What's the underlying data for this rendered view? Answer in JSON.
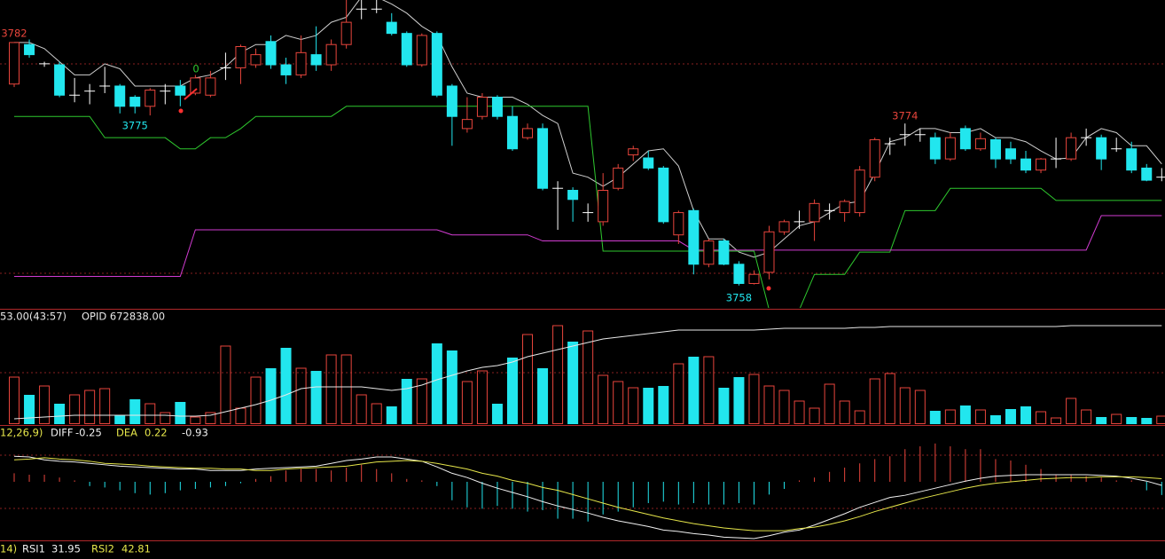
{
  "chart_data": [
    {
      "type": "candlestick",
      "ylim": [
        3755.7,
        3786.2
      ],
      "up_color": "#e8453c",
      "down_color": "#22e6ee",
      "doji_color": "#ffffff",
      "signal_text": "0",
      "open": [
        3777.9,
        3781.8,
        3779.9,
        3779.8,
        3776.8,
        3777.2,
        3777.7,
        3777.7,
        3776.6,
        3775.7,
        3777.2,
        3777.7,
        3777.0,
        3776.8,
        3779.5,
        3779.5,
        3779.8,
        3782.1,
        3779.8,
        3778.8,
        3780.8,
        3779.8,
        3781.8,
        3785.3,
        3785.3,
        3784.0,
        3782.9,
        3779.8,
        3782.9,
        3777.7,
        3773.5,
        3774.7,
        3776.6,
        3774.7,
        3772.6,
        3773.5,
        3767.6,
        3767.4,
        3765.2,
        3764.3,
        3767.6,
        3770.9,
        3770.6,
        3769.6,
        3763.0,
        3765.4,
        3760.1,
        3762.4,
        3760.1,
        3758.2,
        3759.3,
        3763.3,
        3764.3,
        3764.3,
        3765.4,
        3765.2,
        3765.2,
        3768.7,
        3772.0,
        3772.9,
        3772.9,
        3772.6,
        3770.5,
        3773.5,
        3771.5,
        3772.4,
        3771.5,
        3770.5,
        3769.4,
        3770.5,
        3770.5,
        3772.6,
        3772.6,
        3771.5,
        3771.5,
        3769.6,
        3768.7
      ],
      "close": [
        3782.0,
        3780.8,
        3779.9,
        3776.8,
        3776.8,
        3777.2,
        3777.7,
        3775.7,
        3775.7,
        3777.3,
        3777.2,
        3776.8,
        3778.5,
        3778.5,
        3779.5,
        3781.6,
        3780.8,
        3779.8,
        3778.8,
        3781.0,
        3779.8,
        3781.8,
        3784.0,
        3785.3,
        3785.3,
        3782.9,
        3779.8,
        3782.7,
        3776.8,
        3774.7,
        3774.4,
        3776.6,
        3774.7,
        3771.5,
        3773.5,
        3767.6,
        3767.6,
        3766.5,
        3765.2,
        3767.4,
        3769.6,
        3771.5,
        3769.6,
        3764.3,
        3765.2,
        3760.1,
        3762.4,
        3760.1,
        3758.2,
        3759.1,
        3763.3,
        3764.3,
        3764.3,
        3766.1,
        3765.4,
        3766.3,
        3769.4,
        3772.4,
        3772.0,
        3772.9,
        3772.9,
        3770.5,
        3772.6,
        3771.5,
        3772.5,
        3770.5,
        3770.5,
        3769.4,
        3770.5,
        3770.5,
        3772.6,
        3772.6,
        3770.5,
        3771.5,
        3769.4,
        3768.4,
        3768.7
      ],
      "high": [
        3782,
        3782.3,
        3780.1,
        3780.1,
        3778.5,
        3777.9,
        3779.6,
        3777.9,
        3776.8,
        3777.5,
        3777.9,
        3778.3,
        3778.8,
        3779.2,
        3781.0,
        3781.8,
        3781.4,
        3782.7,
        3780.5,
        3782.7,
        3783.6,
        3782.3,
        3786.6,
        3786.6,
        3786.4,
        3784.9,
        3783.1,
        3782.9,
        3783.1,
        3777.9,
        3776.6,
        3777.0,
        3776.8,
        3775.7,
        3774.0,
        3774.0,
        3768.3,
        3767.7,
        3766.1,
        3769.1,
        3770.0,
        3771.8,
        3771.3,
        3769.8,
        3765.4,
        3765.6,
        3762.6,
        3762.6,
        3760.4,
        3759.5,
        3763.9,
        3764.5,
        3765.4,
        3766.5,
        3766.1,
        3766.5,
        3769.8,
        3772.6,
        3772.6,
        3774,
        3773.5,
        3773.1,
        3773.1,
        3773.8,
        3773.1,
        3772.6,
        3772.2,
        3771.3,
        3770.6,
        3772.6,
        3773.1,
        3773.5,
        3772.9,
        3772.6,
        3772.2,
        3770.0,
        3769.6
      ],
      "low": [
        3777.6,
        3780.5,
        3779.6,
        3776.6,
        3776.1,
        3775.9,
        3777.0,
        3775.0,
        3775,
        3774.8,
        3775.9,
        3775.7,
        3776.8,
        3776.6,
        3778.3,
        3777.9,
        3779.5,
        3779.4,
        3777.9,
        3778.5,
        3779.2,
        3779.2,
        3781.4,
        3784.3,
        3784.9,
        3782.7,
        3779.6,
        3779.6,
        3776.6,
        3771.8,
        3773.1,
        3774.4,
        3774.4,
        3771.3,
        3772.4,
        3767.4,
        3763.5,
        3764.3,
        3764.3,
        3763.9,
        3767.4,
        3770.3,
        3769.4,
        3764.1,
        3762.1,
        3759.1,
        3759.8,
        3760.0,
        3758,
        3758.1,
        3758.6,
        3763.0,
        3763.6,
        3762.4,
        3764.5,
        3764.3,
        3764.8,
        3768.3,
        3770.9,
        3771.8,
        3772.2,
        3770.0,
        3770.3,
        3771.3,
        3771.3,
        3769.6,
        3770.0,
        3769.1,
        3769.1,
        3769.6,
        3770.3,
        3771.8,
        3769.4,
        3771.2,
        3769.1,
        3768.3,
        3768.3
      ],
      "overlays": [
        {
          "color": "#cfcfcf",
          "values": [
            3782.0,
            3782.0,
            3781.4,
            3780.1,
            3778.8,
            3778.8,
            3779.9,
            3779.4,
            3777.7,
            3777.7,
            3777.7,
            3777.7,
            3778.5,
            3778.8,
            3779.6,
            3781.0,
            3781.8,
            3781.8,
            3782.7,
            3782.3,
            3782.7,
            3784.0,
            3784.5,
            3786.5,
            3786.5,
            3785.8,
            3784.9,
            3783.6,
            3782.7,
            3779.6,
            3777.0,
            3776.6,
            3776.6,
            3776.6,
            3775.9,
            3774.8,
            3774.0,
            3769.1,
            3768.7,
            3767.8,
            3768.7,
            3770.0,
            3771.3,
            3771.5,
            3769.8,
            3765.4,
            3762.6,
            3762.6,
            3761.3,
            3760.8,
            3761.3,
            3762.6,
            3763.9,
            3764.3,
            3765.2,
            3766.1,
            3766.3,
            3769.1,
            3772.2,
            3772.6,
            3773.5,
            3773.5,
            3773.1,
            3773.1,
            3773.5,
            3772.6,
            3772.6,
            3772.2,
            3771.3,
            3770.5,
            3770.6,
            3772.6,
            3773.5,
            3773.1,
            3771.8,
            3771.8,
            3770.0
          ]
        },
        {
          "color": "#2ec82e",
          "values": [
            3774.7,
            3774.7,
            3774.7,
            3774.7,
            3774.7,
            3774.7,
            3772.6,
            3772.6,
            3772.6,
            3772.6,
            3772.6,
            3771.5,
            3771.5,
            3772.6,
            3772.6,
            3773.5,
            3774.7,
            3774.7,
            3774.7,
            3774.7,
            3774.7,
            3774.7,
            3775.7,
            3775.7,
            3775.7,
            3775.7,
            3775.7,
            3775.7,
            3775.7,
            3775.7,
            3775.7,
            3775.7,
            3775.7,
            3775.7,
            3775.7,
            3775.7,
            3775.7,
            3775.7,
            3775.7,
            3761.4,
            3761.4,
            3761.4,
            3761.4,
            3761.4,
            3761.4,
            3761.4,
            3761.4,
            3761.4,
            3761.4,
            3761.4,
            3755.6,
            3752.9,
            3755.6,
            3759.1,
            3759.1,
            3759.1,
            3761.3,
            3761.3,
            3761.3,
            3765.4,
            3765.4,
            3765.4,
            3767.6,
            3767.6,
            3767.6,
            3767.6,
            3767.6,
            3767.6,
            3767.6,
            3766.4,
            3766.4,
            3766.4,
            3766.4,
            3766.4,
            3766.4,
            3766.4,
            3766.4
          ]
        },
        {
          "color": "#d23cd2",
          "values": [
            3758.9,
            3758.9,
            3758.9,
            3758.9,
            3758.9,
            3758.9,
            3758.9,
            3758.9,
            3758.9,
            3758.9,
            3758.9,
            3758.9,
            3763.5,
            3763.5,
            3763.5,
            3763.5,
            3763.5,
            3763.5,
            3763.5,
            3763.5,
            3763.5,
            3763.5,
            3763.5,
            3763.5,
            3763.5,
            3763.5,
            3763.5,
            3763.5,
            3763.5,
            3763.0,
            3763.0,
            3763.0,
            3763.0,
            3763.0,
            3763.0,
            3762.4,
            3762.4,
            3762.4,
            3762.4,
            3762.4,
            3762.4,
            3762.4,
            3762.4,
            3762.4,
            3762.4,
            3761.5,
            3761.5,
            3761.5,
            3761.5,
            3761.5,
            3761.5,
            3761.5,
            3761.5,
            3761.5,
            3761.5,
            3761.5,
            3761.5,
            3761.5,
            3761.5,
            3761.5,
            3761.5,
            3761.5,
            3761.5,
            3761.5,
            3761.5,
            3761.5,
            3761.5,
            3761.5,
            3761.5,
            3761.5,
            3761.5,
            3761.5,
            3764.9,
            3764.9,
            3764.9,
            3764.9,
            3764.9
          ]
        }
      ]
    },
    {
      "type": "volume",
      "header": "53.00(43:57)",
      "subheader": "OPID 672838.00",
      "ylim": [
        0,
        128
      ],
      "ma_color": "#e8e8e8",
      "values": [
        53,
        33,
        43,
        23,
        33,
        38,
        40,
        10,
        28,
        23,
        13,
        25,
        8,
        13,
        88,
        18,
        53,
        63,
        86,
        63,
        60,
        78,
        78,
        33,
        23,
        20,
        51,
        51,
        91,
        83,
        48,
        60,
        23,
        75,
        101,
        63,
        111,
        93,
        105,
        55,
        48,
        41,
        41,
        43,
        68,
        76,
        76,
        41,
        53,
        56,
        43,
        38,
        26,
        18,
        45,
        26,
        15,
        51,
        57,
        41,
        38,
        15,
        16,
        21,
        16,
        10,
        17,
        20,
        14,
        7,
        29,
        16,
        8,
        11,
        8,
        7,
        9
      ],
      "ma_values": [
        6,
        7,
        8,
        9,
        10,
        10,
        10,
        10,
        10,
        10,
        10,
        9,
        9,
        10,
        14,
        18,
        22,
        27,
        33,
        40,
        42,
        42,
        42,
        42,
        40,
        38,
        40,
        44,
        50,
        55,
        60,
        64,
        66,
        70,
        76,
        80,
        84,
        88,
        92,
        96,
        98,
        100,
        102,
        104,
        106,
        106,
        106,
        106,
        106,
        106,
        107,
        108,
        108,
        108,
        108,
        108,
        109,
        109,
        110,
        110,
        110,
        110,
        110,
        110,
        110,
        110,
        110,
        110,
        110,
        110,
        111,
        111,
        111,
        111,
        111,
        111,
        111
      ]
    },
    {
      "type": "macd",
      "header": "12,26,9)",
      "ylim": [
        -4.19,
        3.94
      ],
      "series": [
        {
          "name": "DIFF",
          "color": "#f0f0f0",
          "values": [
            1.8,
            1.75,
            1.55,
            1.45,
            1.4,
            1.3,
            1.2,
            1.1,
            1.05,
            1.0,
            0.95,
            0.9,
            0.9,
            0.8,
            0.8,
            0.8,
            0.9,
            0.95,
            1.0,
            1.05,
            1.1,
            1.3,
            1.5,
            1.6,
            1.75,
            1.75,
            1.6,
            1.45,
            1.05,
            0.6,
            0.3,
            -0.1,
            -0.45,
            -0.75,
            -1.05,
            -1.4,
            -1.7,
            -1.95,
            -2.2,
            -2.5,
            -2.75,
            -2.95,
            -3.15,
            -3.4,
            -3.5,
            -3.65,
            -3.75,
            -3.9,
            -3.95,
            -4.0,
            -3.8,
            -3.55,
            -3.4,
            -3.05,
            -2.65,
            -2.25,
            -1.8,
            -1.45,
            -1.1,
            -0.95,
            -0.7,
            -0.45,
            -0.2,
            0.05,
            0.25,
            0.4,
            0.45,
            0.5,
            0.5,
            0.5,
            0.5,
            0.5,
            0.45,
            0.4,
            0.25,
            0.05,
            -0.25
          ]
        },
        {
          "name": "DEA",
          "color": "#e6e64a",
          "values": [
            1.55,
            1.6,
            1.7,
            1.6,
            1.55,
            1.45,
            1.3,
            1.25,
            1.2,
            1.1,
            1.05,
            1.0,
            0.95,
            0.95,
            0.9,
            0.9,
            0.8,
            0.8,
            0.9,
            0.95,
            1.0,
            1.05,
            1.1,
            1.25,
            1.4,
            1.45,
            1.5,
            1.45,
            1.3,
            1.1,
            0.9,
            0.6,
            0.4,
            0.1,
            -0.1,
            -0.4,
            -0.6,
            -0.9,
            -1.2,
            -1.5,
            -1.8,
            -2.05,
            -2.3,
            -2.55,
            -2.75,
            -2.95,
            -3.1,
            -3.25,
            -3.35,
            -3.45,
            -3.45,
            -3.45,
            -3.3,
            -3.2,
            -3.0,
            -2.75,
            -2.45,
            -2.1,
            -1.8,
            -1.5,
            -1.2,
            -0.95,
            -0.7,
            -0.45,
            -0.25,
            -0.1,
            0,
            0.1,
            0.2,
            0.25,
            0.3,
            0.3,
            0.35,
            0.35,
            0.35,
            0.3,
            0.22
          ]
        }
      ],
      "histogram": [
        0.6,
        0.5,
        0.5,
        0.3,
        0.1,
        -0.3,
        -0.4,
        -0.6,
        -0.8,
        -0.9,
        -0.8,
        -0.6,
        -0.5,
        -0.4,
        -0.3,
        -0.1,
        0.2,
        0.4,
        0.8,
        0.9,
        0.9,
        0.8,
        1.0,
        1.2,
        0.9,
        0.6,
        0.2,
        0.1,
        -0.3,
        -1.3,
        -1.8,
        -1.9,
        -1.7,
        -1.9,
        -2.1,
        -2.0,
        -2.6,
        -2.6,
        -2.8,
        -2.3,
        -2.1,
        -1.8,
        -1.5,
        -1.4,
        -1.6,
        -1.5,
        -1.6,
        -1.6,
        -1.5,
        -1.6,
        -0.9,
        -0.5,
        0.1,
        0.3,
        0.7,
        1.0,
        1.3,
        1.6,
        1.8,
        2.3,
        2.5,
        2.7,
        2.5,
        2.3,
        2.3,
        1.6,
        1.5,
        1.2,
        0.9,
        0.5,
        0.5,
        0.4,
        0.3,
        0.1,
        0.1,
        -0.6,
        -0.93
      ]
    },
    {
      "type": "rsi",
      "header": "14)",
      "series": [
        {
          "name": "RSI1",
          "color": "#f0f0f0",
          "value": 31.95
        },
        {
          "name": "RSI2",
          "color": "#e6e64a",
          "value": 42.81
        }
      ]
    }
  ]
}
